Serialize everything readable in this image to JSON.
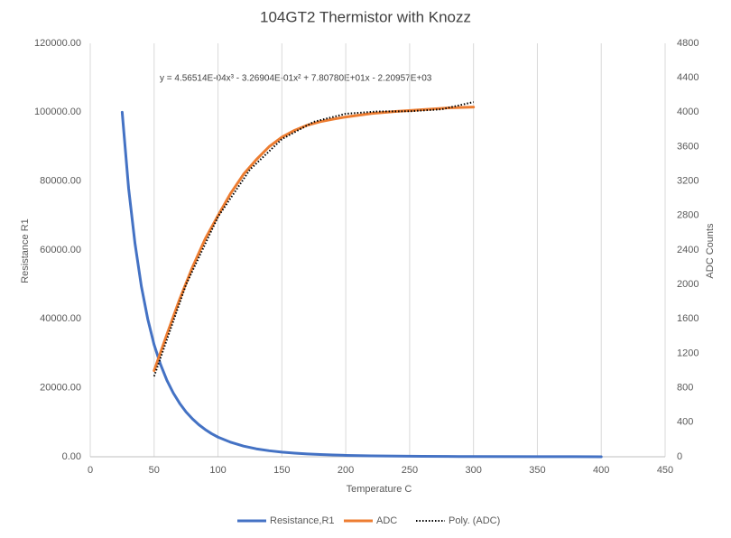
{
  "chart_data": {
    "type": "line",
    "title": "104GT2 Thermistor with Knozz",
    "annotation": "y = 4.56514E-04x³ - 3.26904E-01x² + 7.80780E+01x - 2.20957E+03",
    "xlabel": "Temperature  C",
    "ylabel": "Resistance R1",
    "y2label": "ADC Counts",
    "xlim": [
      0,
      450
    ],
    "xticks": [
      0,
      50,
      100,
      150,
      200,
      250,
      300,
      350,
      400,
      450
    ],
    "ylim": [
      0,
      120000
    ],
    "yticks": [
      {
        "value": 0,
        "label": "0.00"
      },
      {
        "value": 20000,
        "label": "20000.00"
      },
      {
        "value": 40000,
        "label": "40000.00"
      },
      {
        "value": 60000,
        "label": "60000.00"
      },
      {
        "value": 80000,
        "label": "80000.00"
      },
      {
        "value": 100000,
        "label": "100000.00"
      },
      {
        "value": 120000,
        "label": "120000.00"
      }
    ],
    "y2lim": [
      0,
      4800
    ],
    "y2ticks": [
      0,
      400,
      800,
      1200,
      1600,
      2000,
      2400,
      2800,
      3200,
      3600,
      4000,
      4400,
      4800
    ],
    "xgrid": true,
    "legend": "bottom",
    "series": [
      {
        "name": "Resistance,R1",
        "color": "#4472c4",
        "style": "solid",
        "x": [
          25,
          30,
          35,
          40,
          45,
          50,
          55,
          60,
          65,
          70,
          75,
          80,
          85,
          90,
          95,
          100,
          110,
          120,
          130,
          140,
          150,
          160,
          170,
          180,
          190,
          200,
          220,
          240,
          260,
          280,
          300,
          350,
          400
        ],
        "values": [
          100000,
          78000,
          62000,
          49500,
          40000,
          32500,
          26800,
          22200,
          18500,
          15500,
          13000,
          11000,
          9300,
          7900,
          6700,
          5700,
          4200,
          3100,
          2300,
          1750,
          1340,
          1040,
          810,
          640,
          510,
          410,
          270,
          180,
          125,
          90,
          65,
          30,
          15
        ]
      },
      {
        "name": "ADC",
        "color": "#ed7d31",
        "style": "solid",
        "axis": "y2",
        "x": [
          50,
          60,
          70,
          80,
          90,
          100,
          110,
          120,
          130,
          140,
          150,
          160,
          170,
          180,
          190,
          200,
          220,
          240,
          260,
          280,
          300
        ],
        "values": [
          1000,
          1420,
          1830,
          2200,
          2530,
          2800,
          3060,
          3280,
          3450,
          3600,
          3710,
          3790,
          3850,
          3890,
          3920,
          3945,
          3985,
          4010,
          4030,
          4050,
          4060
        ]
      },
      {
        "name": "Poly. (ADC)",
        "color": "#000000",
        "style": "dotted",
        "axis": "y2",
        "x": [
          50,
          75,
          100,
          125,
          150,
          175,
          200,
          225,
          250,
          275,
          300
        ],
        "values": [
          934,
          2000,
          2786,
          3334,
          3688,
          3889,
          3982,
          4009,
          4011,
          4034,
          4118
        ]
      }
    ]
  }
}
